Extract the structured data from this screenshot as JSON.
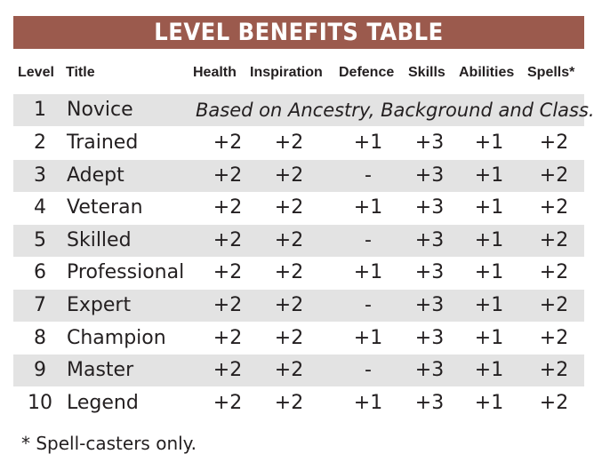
{
  "banner": "LEVEL BENEFITS TABLE",
  "columns": [
    "Level",
    "Title",
    "Health",
    "Inspiration",
    "Defence",
    "Skills",
    "Abilities",
    "Spells*"
  ],
  "row1": {
    "level": "1",
    "title": "Novice",
    "note": "Based on Ancestry, Background and Class."
  },
  "rows": [
    {
      "level": "2",
      "title": "Trained",
      "health": "+2",
      "inspiration": "+2",
      "defence": "+1",
      "skills": "+3",
      "abilities": "+1",
      "spells": "+2"
    },
    {
      "level": "3",
      "title": "Adept",
      "health": "+2",
      "inspiration": "+2",
      "defence": "-",
      "skills": "+3",
      "abilities": "+1",
      "spells": "+2"
    },
    {
      "level": "4",
      "title": "Veteran",
      "health": "+2",
      "inspiration": "+2",
      "defence": "+1",
      "skills": "+3",
      "abilities": "+1",
      "spells": "+2"
    },
    {
      "level": "5",
      "title": "Skilled",
      "health": "+2",
      "inspiration": "+2",
      "defence": "-",
      "skills": "+3",
      "abilities": "+1",
      "spells": "+2"
    },
    {
      "level": "6",
      "title": "Professional",
      "health": "+2",
      "inspiration": "+2",
      "defence": "+1",
      "skills": "+3",
      "abilities": "+1",
      "spells": "+2"
    },
    {
      "level": "7",
      "title": "Expert",
      "health": "+2",
      "inspiration": "+2",
      "defence": "-",
      "skills": "+3",
      "abilities": "+1",
      "spells": "+2"
    },
    {
      "level": "8",
      "title": "Champion",
      "health": "+2",
      "inspiration": "+2",
      "defence": "+1",
      "skills": "+3",
      "abilities": "+1",
      "spells": "+2"
    },
    {
      "level": "9",
      "title": "Master",
      "health": "+2",
      "inspiration": "+2",
      "defence": "-",
      "skills": "+3",
      "abilities": "+1",
      "spells": "+2"
    },
    {
      "level": "10",
      "title": "Legend",
      "health": "+2",
      "inspiration": "+2",
      "defence": "+1",
      "skills": "+3",
      "abilities": "+1",
      "spells": "+2"
    }
  ],
  "footnote": "* Spell-casters only.",
  "colors": {
    "banner": "#9b5a4d",
    "shade": "#e3e3e3",
    "text": "#231f20"
  }
}
